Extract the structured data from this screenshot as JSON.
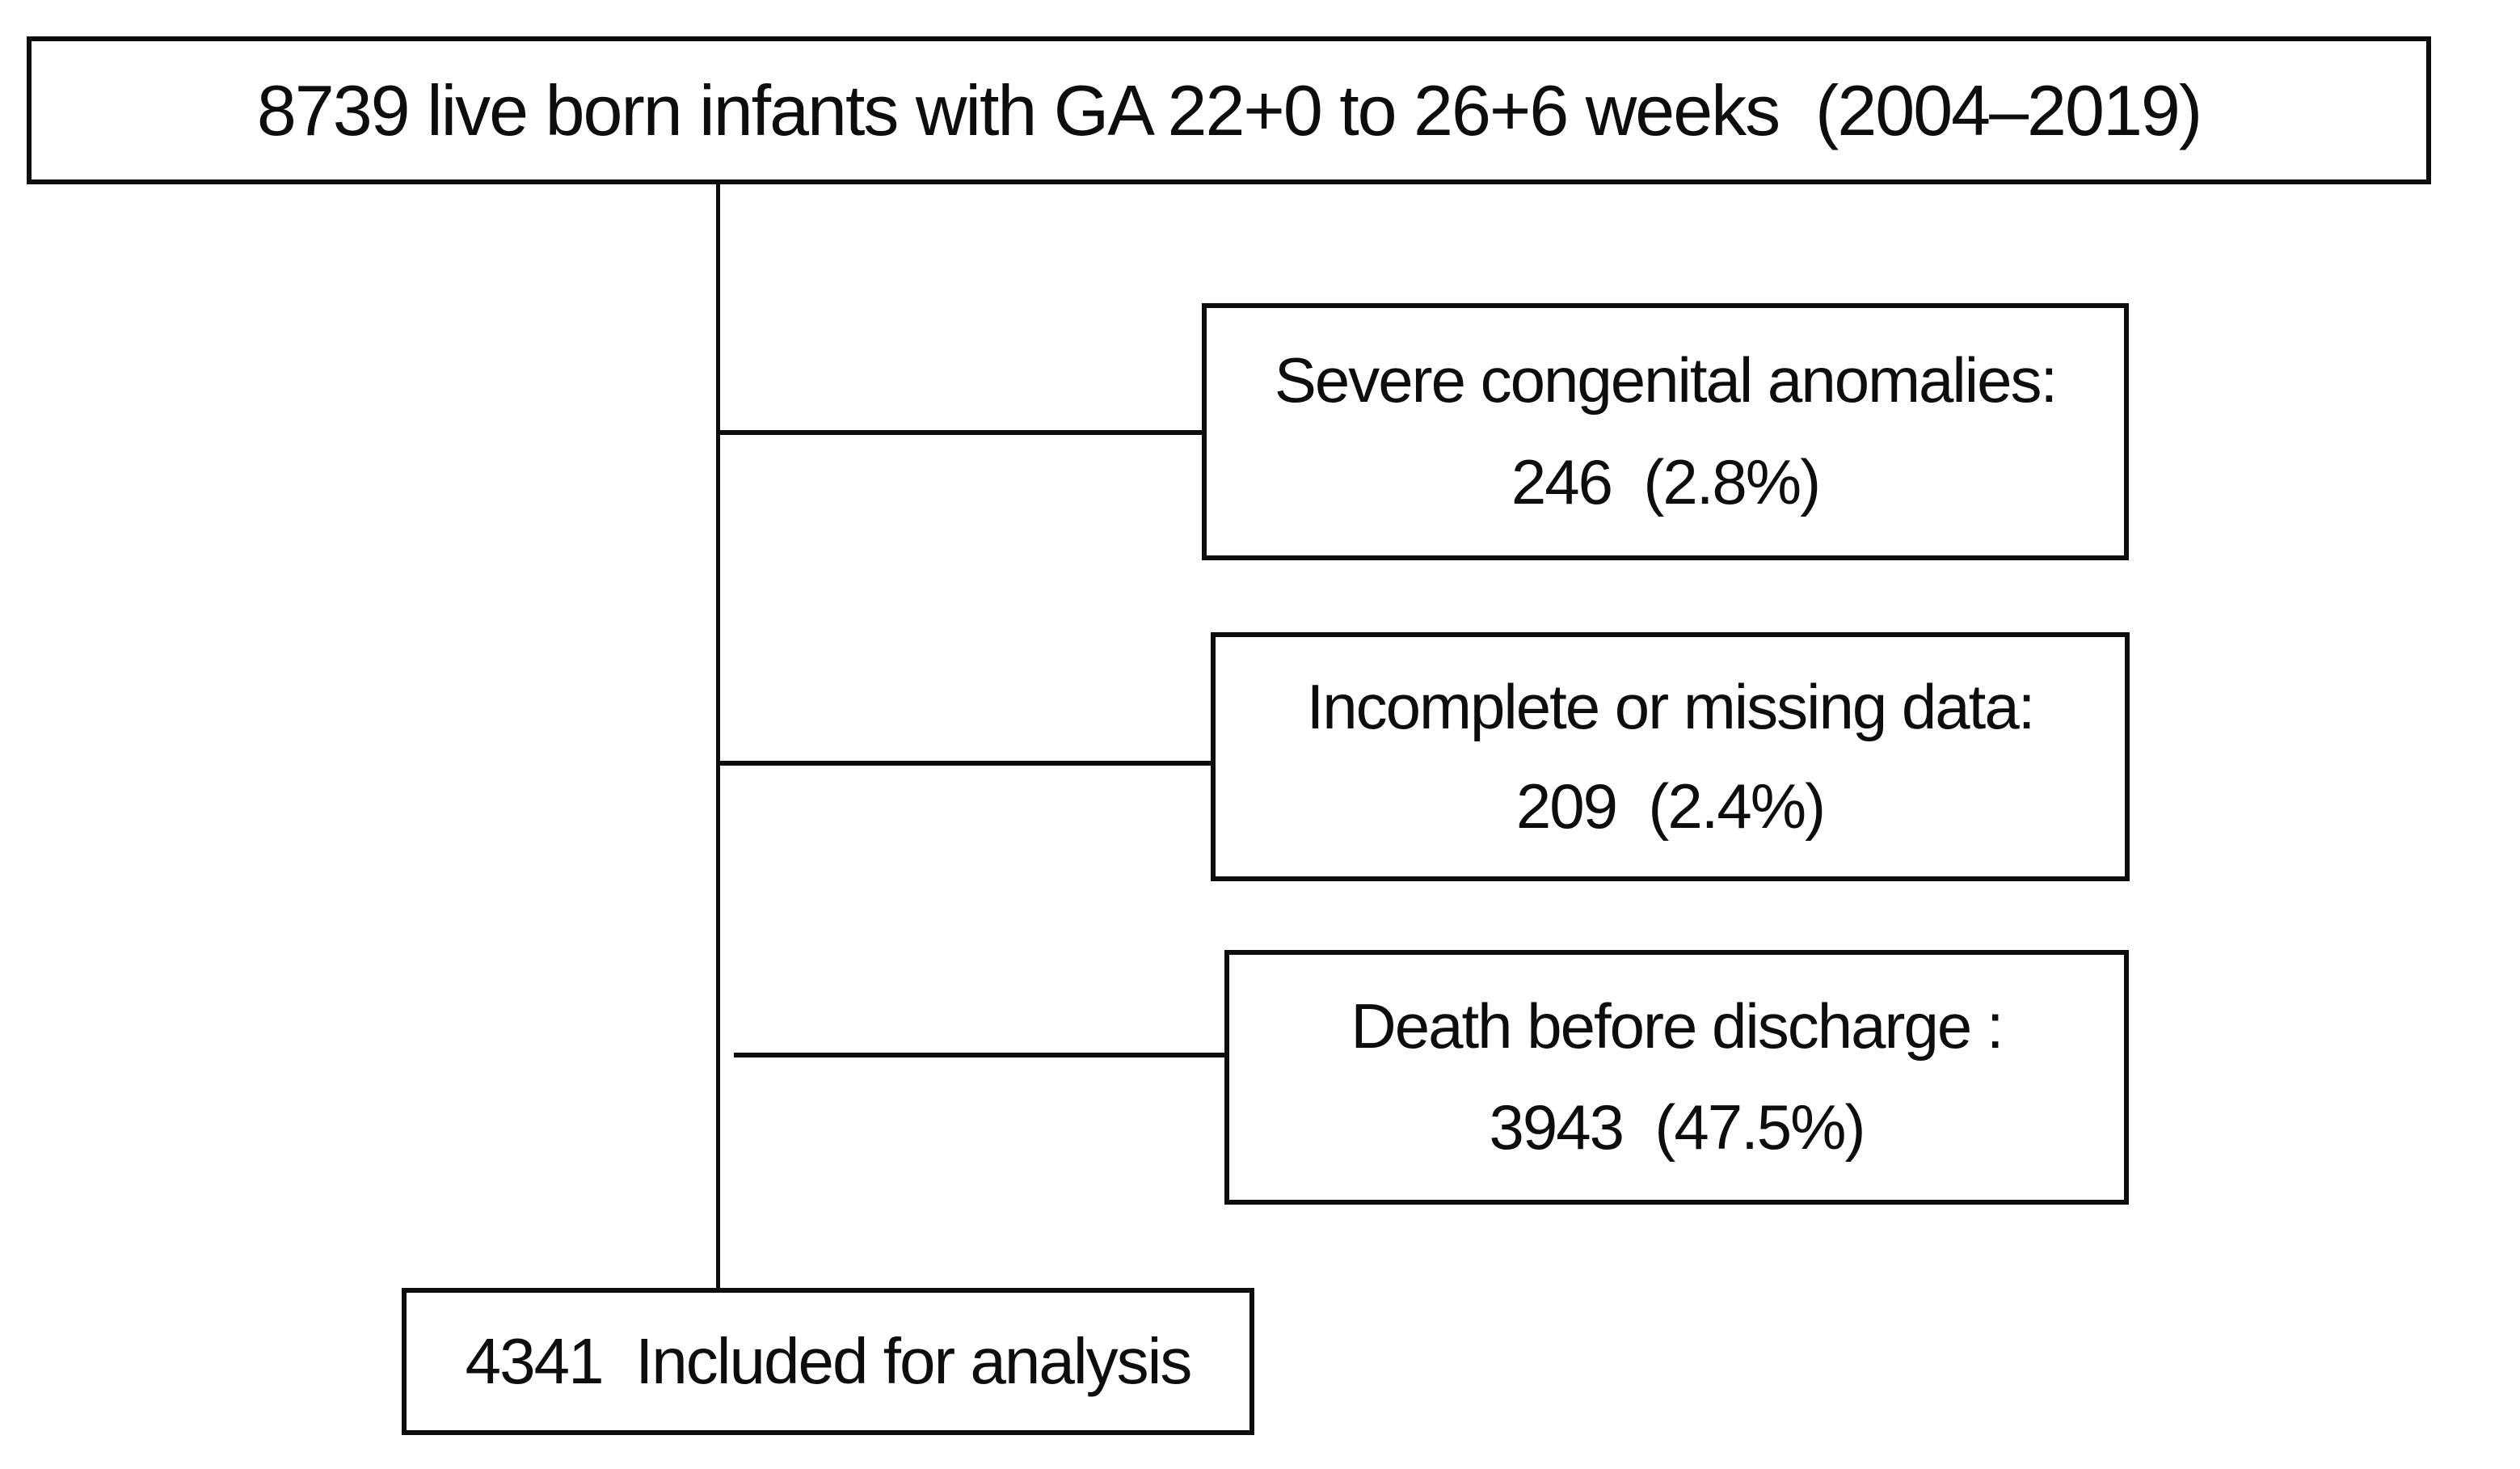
{
  "diagram": {
    "type": "patient-flow-chart",
    "colors": {
      "border": "#0d0d0d",
      "text": "#0d0d0d",
      "background": "#ffffff"
    },
    "top_box": {
      "text": "8739 live born infants with GA 22+0 to 26+6 weeks  (2004–2019)"
    },
    "exclusion_boxes": [
      {
        "label": "Severe congenital anomalies:",
        "value": "246  (2.8%)"
      },
      {
        "label": "Incomplete or missing data:",
        "value": "209  (2.4%)"
      },
      {
        "label": "Death before discharge :",
        "value": "3943  (47.5%)"
      }
    ],
    "bottom_box": {
      "text": "4341  Included for analysis"
    }
  }
}
